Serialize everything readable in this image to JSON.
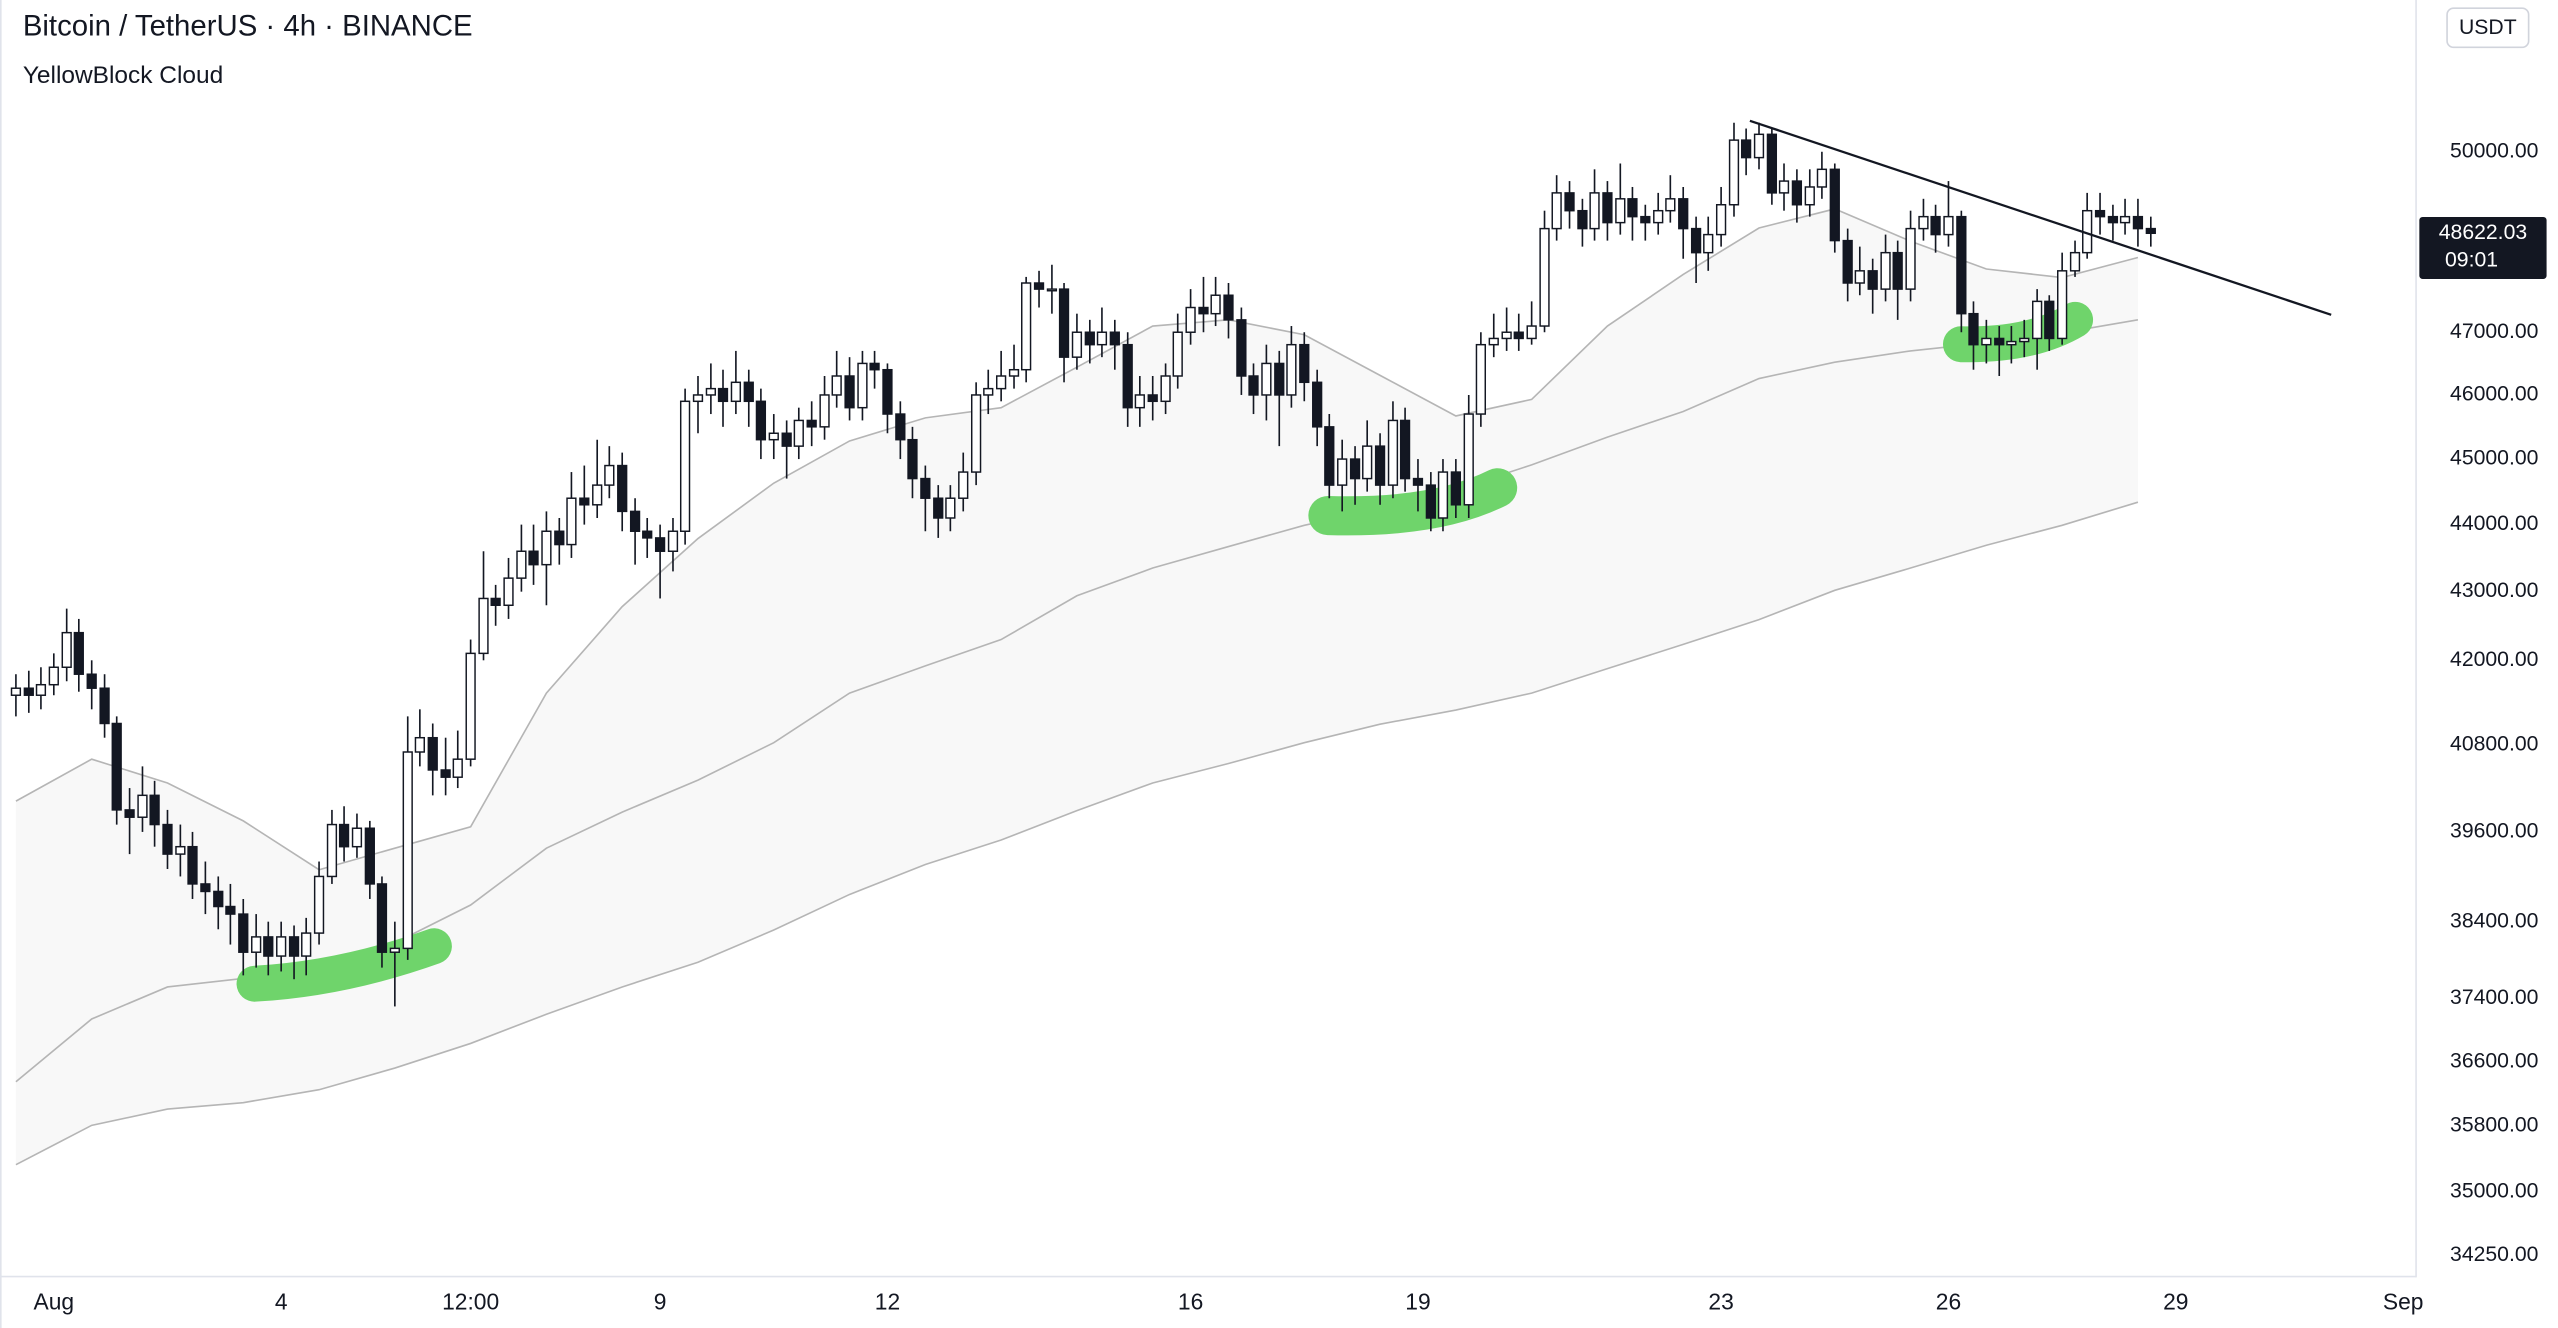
{
  "chart_data": {
    "type": "candlestick",
    "title": "Bitcoin / TetherUS · 4h · BINANCE",
    "indicator": "YellowBlock Cloud",
    "currency": "USDT",
    "countdown": "09:01",
    "log_scale": true,
    "up_color": "#ffffff",
    "down_color": "#131722",
    "xlim": [
      0.29,
      32.17
    ],
    "xticks": [
      {
        "value": 1,
        "label": "Aug"
      },
      4,
      {
        "value": 6.5,
        "label": "12:00"
      },
      9,
      12,
      16,
      19,
      23,
      26,
      29,
      {
        "value": 32,
        "label": "Sep"
      }
    ],
    "ylim": [
      34010,
      52670
    ],
    "yticks": [
      {
        "value": 34250,
        "label": "34250.00"
      },
      {
        "value": 35000,
        "label": "35000.00"
      },
      {
        "value": 35800,
        "label": "35800.00"
      },
      {
        "value": 36600,
        "label": "36600.00"
      },
      {
        "value": 37400,
        "label": "37400.00"
      },
      {
        "value": 38400,
        "label": "38400.00"
      },
      {
        "value": 39600,
        "label": "39600.00"
      },
      {
        "value": 40800,
        "label": "40800.00"
      },
      {
        "value": 42000,
        "label": "42000.00"
      },
      {
        "value": 43000,
        "label": "43000.00"
      },
      {
        "value": 44000,
        "label": "44000.00"
      },
      {
        "value": 45000,
        "label": "45000.00"
      },
      {
        "value": 46000,
        "label": "46000.00"
      },
      {
        "value": 47000,
        "label": "47000.00"
      },
      {
        "value": 50000,
        "label": "50000.00"
      }
    ],
    "x": [
      0.5,
      0.67,
      0.83,
      1,
      1.17,
      1.33,
      1.5,
      1.67,
      1.83,
      2,
      2.17,
      2.33,
      2.5,
      2.67,
      2.83,
      3,
      3.17,
      3.33,
      3.5,
      3.67,
      3.83,
      4,
      4.17,
      4.33,
      4.5,
      4.67,
      4.83,
      5,
      5.17,
      5.33,
      5.5,
      5.67,
      5.83,
      6,
      6.17,
      6.33,
      6.5,
      6.67,
      6.83,
      7,
      7.17,
      7.33,
      7.5,
      7.67,
      7.83,
      8,
      8.17,
      8.33,
      8.5,
      8.67,
      8.83,
      9,
      9.17,
      9.33,
      9.5,
      9.67,
      9.83,
      10,
      10.17,
      10.33,
      10.5,
      10.67,
      10.83,
      11,
      11.17,
      11.33,
      11.5,
      11.67,
      11.83,
      12,
      12.17,
      12.33,
      12.5,
      12.67,
      12.83,
      13,
      13.17,
      13.33,
      13.5,
      13.67,
      13.83,
      14,
      14.17,
      14.33,
      14.5,
      14.67,
      14.83,
      15,
      15.17,
      15.33,
      15.5,
      15.67,
      15.83,
      16,
      16.17,
      16.33,
      16.5,
      16.67,
      16.83,
      17,
      17.17,
      17.33,
      17.5,
      17.67,
      17.83,
      18,
      18.17,
      18.33,
      18.5,
      18.67,
      18.83,
      19,
      19.17,
      19.33,
      19.5,
      19.67,
      19.83,
      20,
      20.17,
      20.33,
      20.5,
      20.67,
      20.83,
      21,
      21.17,
      21.33,
      21.5,
      21.67,
      21.83,
      22,
      22.17,
      22.33,
      22.5,
      22.67,
      22.83,
      23,
      23.17,
      23.33,
      23.5,
      23.67,
      23.83,
      24,
      24.17,
      24.33,
      24.5,
      24.67,
      24.83,
      25,
      25.17,
      25.33,
      25.5,
      25.67,
      25.83,
      26,
      26.17,
      26.33,
      26.5,
      26.67,
      26.83,
      27,
      27.17,
      27.33,
      27.5,
      27.67,
      27.83,
      28,
      28.17,
      28.33,
      28.5,
      28.67
    ],
    "open": [
      41500,
      41600,
      41500,
      41650,
      41900,
      42400,
      41800,
      41600,
      41100,
      39900,
      39800,
      40100,
      39700,
      39300,
      39400,
      38900,
      38800,
      38600,
      38500,
      38000,
      38200,
      37950,
      38200,
      37950,
      38250,
      39000,
      39700,
      39400,
      39650,
      38900,
      38000,
      38050,
      40700,
      40900,
      40450,
      40350,
      40600,
      42100,
      42900,
      42800,
      43200,
      43600,
      43400,
      43900,
      43700,
      44400,
      44300,
      44600,
      44900,
      44200,
      43900,
      43800,
      43600,
      43900,
      45900,
      46000,
      46100,
      45900,
      46200,
      45900,
      45300,
      45400,
      45200,
      45600,
      45500,
      46000,
      46300,
      45800,
      46500,
      46400,
      45700,
      45300,
      44700,
      44400,
      44100,
      44400,
      44800,
      46000,
      46100,
      46300,
      46400,
      47800,
      47700,
      47700,
      46600,
      47000,
      46800,
      47000,
      46800,
      45800,
      46000,
      45900,
      46300,
      47000,
      47400,
      47300,
      47600,
      47200,
      46300,
      46000,
      46500,
      46000,
      46800,
      46200,
      45500,
      44600,
      45000,
      44700,
      45200,
      44600,
      45600,
      44700,
      44600,
      44100,
      44800,
      44300,
      45700,
      46800,
      46900,
      47000,
      46900,
      47100,
      48700,
      49300,
      49000,
      48700,
      49300,
      48800,
      49200,
      48900,
      48800,
      49000,
      49200,
      48700,
      48300,
      48600,
      49100,
      50200,
      49900,
      50300,
      49300,
      49500,
      49100,
      49400,
      49700,
      48500,
      47800,
      48000,
      47700,
      48300,
      47700,
      48700,
      48900,
      48600,
      48900,
      47300,
      46800,
      46900,
      46800,
      46850,
      46900,
      47500,
      46900,
      48000,
      48300,
      49000,
      48900,
      48800,
      48900,
      48700
    ],
    "high": [
      41800,
      41850,
      41900,
      42100,
      42750,
      42600,
      42000,
      41800,
      41200,
      40200,
      40500,
      40300,
      39900,
      39700,
      39600,
      39200,
      39000,
      38900,
      38700,
      38500,
      38400,
      38400,
      38350,
      38450,
      39200,
      39900,
      39950,
      39850,
      39750,
      39000,
      38400,
      41200,
      41300,
      41100,
      40900,
      41000,
      42300,
      43600,
      43100,
      43500,
      44000,
      44000,
      44200,
      44100,
      44800,
      44900,
      45300,
      45200,
      45100,
      44400,
      44100,
      44000,
      44100,
      46100,
      46300,
      46500,
      46400,
      46700,
      46400,
      46100,
      45700,
      45600,
      45800,
      45900,
      46300,
      46700,
      46600,
      46700,
      46700,
      46500,
      45900,
      45500,
      44900,
      44600,
      44600,
      45100,
      46200,
      46400,
      46700,
      46800,
      47900,
      48000,
      48100,
      47800,
      47300,
      47200,
      47400,
      47200,
      47000,
      46300,
      46300,
      46500,
      47300,
      47700,
      47900,
      47900,
      47800,
      47400,
      46500,
      46800,
      46700,
      47100,
      47000,
      46400,
      45700,
      45300,
      45200,
      45600,
      45400,
      45900,
      45800,
      45000,
      44800,
      45000,
      45000,
      46000,
      47000,
      47300,
      47400,
      47300,
      47500,
      49000,
      49600,
      49500,
      49200,
      49700,
      49500,
      49800,
      49400,
      49100,
      49300,
      49600,
      49400,
      48900,
      48900,
      49400,
      50500,
      50400,
      50500,
      50400,
      49800,
      49700,
      49700,
      50000,
      49800,
      48700,
      48400,
      48200,
      48600,
      48500,
      49000,
      49200,
      49100,
      49500,
      49000,
      47500,
      47200,
      47100,
      47100,
      47200,
      47700,
      47600,
      48300,
      48500,
      49300,
      49300,
      49100,
      49200,
      49200,
      48900
    ],
    "low": [
      41200,
      41250,
      41300,
      41500,
      41700,
      41550,
      41300,
      40900,
      39700,
      39300,
      39600,
      39400,
      39100,
      39000,
      38700,
      38500,
      38300,
      38100,
      37700,
      37800,
      37700,
      37750,
      37650,
      37700,
      38100,
      38900,
      39200,
      39250,
      38700,
      37800,
      37300,
      37900,
      40500,
      40100,
      40100,
      40200,
      40500,
      42000,
      42500,
      42600,
      43000,
      43100,
      42800,
      43400,
      43500,
      44000,
      44100,
      44400,
      43900,
      43400,
      43500,
      42900,
      43300,
      43700,
      45400,
      45700,
      45500,
      45700,
      45500,
      45000,
      45000,
      44700,
      45000,
      45200,
      45300,
      45800,
      45600,
      45600,
      46100,
      45400,
      45000,
      44400,
      43900,
      43800,
      43900,
      44200,
      44600,
      45700,
      45900,
      46100,
      46200,
      47400,
      47300,
      46200,
      46400,
      46500,
      46600,
      46400,
      45500,
      45500,
      45600,
      45700,
      46100,
      46800,
      47000,
      47100,
      46900,
      46000,
      45700,
      45600,
      45200,
      45800,
      45900,
      45200,
      44400,
      44200,
      44300,
      44500,
      44300,
      44400,
      44500,
      44200,
      43900,
      43900,
      44100,
      44100,
      45500,
      46600,
      46700,
      46700,
      46800,
      47000,
      48500,
      48700,
      48400,
      48500,
      48500,
      48600,
      48500,
      48500,
      48600,
      48800,
      48200,
      47800,
      48000,
      48400,
      48900,
      49600,
      49700,
      49100,
      49000,
      48800,
      48900,
      49200,
      48300,
      47500,
      47600,
      47300,
      47500,
      47200,
      47500,
      48500,
      48300,
      48400,
      47000,
      46400,
      46500,
      46300,
      46500,
      46600,
      46400,
      46700,
      46800,
      47900,
      48200,
      48600,
      48500,
      48600,
      48400,
      48400
    ],
    "close": [
      41600,
      41500,
      41650,
      41900,
      42400,
      41800,
      41600,
      41100,
      39900,
      39800,
      40100,
      39700,
      39300,
      39400,
      38900,
      38800,
      38600,
      38500,
      38000,
      38200,
      37950,
      38200,
      37950,
      38250,
      39000,
      39700,
      39400,
      39650,
      38900,
      38000,
      38050,
      40700,
      40900,
      40450,
      40350,
      40600,
      42100,
      42900,
      42800,
      43200,
      43600,
      43400,
      43900,
      43700,
      44400,
      44300,
      44600,
      44900,
      44200,
      43900,
      43800,
      43600,
      43900,
      45900,
      46000,
      46100,
      45900,
      46200,
      45900,
      45300,
      45400,
      45200,
      45600,
      45500,
      46000,
      46300,
      45800,
      46500,
      46400,
      45700,
      45300,
      44700,
      44400,
      44100,
      44400,
      44800,
      46000,
      46100,
      46300,
      46400,
      47800,
      47700,
      47700,
      46600,
      47000,
      46800,
      47000,
      46800,
      45800,
      46000,
      45900,
      46300,
      47000,
      47400,
      47300,
      47600,
      47200,
      46300,
      46000,
      46500,
      46000,
      46800,
      46200,
      45500,
      44600,
      45000,
      44700,
      45200,
      44600,
      45600,
      44700,
      44600,
      44100,
      44800,
      44300,
      45700,
      46800,
      46900,
      47000,
      46900,
      47100,
      48700,
      49300,
      49000,
      48700,
      49300,
      48800,
      49200,
      48900,
      48800,
      49000,
      49200,
      48700,
      48300,
      48600,
      49100,
      50200,
      49900,
      50300,
      49300,
      49500,
      49100,
      49400,
      49700,
      48500,
      47800,
      48000,
      47700,
      48300,
      47700,
      48700,
      48900,
      48600,
      48900,
      47300,
      46800,
      46900,
      46800,
      46850,
      46900,
      47500,
      46900,
      48000,
      48300,
      49000,
      48900,
      48800,
      48900,
      48700,
      48622.03
    ],
    "cloud": {
      "line_color": "#b5b5b5",
      "fill_color": "#f8f8f8",
      "x": [
        0.5,
        1.5,
        2.5,
        3.5,
        4.5,
        5.5,
        6.5,
        7.5,
        8.5,
        9.5,
        10.5,
        11.5,
        12.5,
        13.5,
        14.5,
        15.5,
        16.5,
        17.5,
        18.5,
        19.5,
        20.5,
        21.5,
        22.5,
        23.5,
        24.5,
        25.5,
        26.5,
        27.5,
        28.5
      ],
      "lines": [
        {
          "values": [
            40020,
            40600,
            40270,
            39750,
            39090,
            39380,
            39670,
            41530,
            42780,
            43790,
            44630,
            45280,
            45640,
            45800,
            46440,
            47100,
            47200,
            46960,
            46310,
            45670,
            45930,
            47100,
            47940,
            48710,
            49030,
            48490,
            48030,
            47890,
            48220
          ]
        },
        {
          "values": [
            36350,
            37140,
            37550,
            37660,
            37740,
            38120,
            38620,
            39380,
            39870,
            40310,
            40830,
            41530,
            41920,
            42300,
            42940,
            43350,
            43670,
            43990,
            44240,
            44530,
            44910,
            45340,
            45740,
            46260,
            46520,
            46700,
            46830,
            46990,
            47200
          ]
        },
        {
          "values": [
            35330,
            35810,
            36010,
            36090,
            36250,
            36520,
            36830,
            37200,
            37550,
            37870,
            38290,
            38760,
            39160,
            39490,
            39890,
            40270,
            40540,
            40830,
            41090,
            41290,
            41530,
            41880,
            42230,
            42590,
            43020,
            43350,
            43690,
            43990,
            44340
          ]
        }
      ]
    },
    "trendline": {
      "x": [
        23.38,
        31.05
      ],
      "values": [
        50534,
        47281
      ],
      "color": "#131722"
    }
  }
}
